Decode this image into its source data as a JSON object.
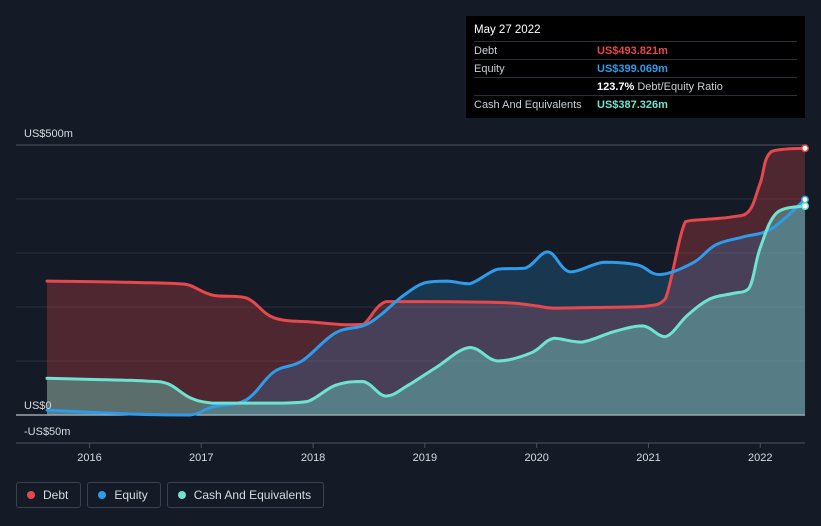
{
  "tooltip": {
    "date": "May 27 2022",
    "debt_label": "Debt",
    "debt_value": "US$493.821m",
    "equity_label": "Equity",
    "equity_value": "US$399.069m",
    "ratio_value": "123.7%",
    "ratio_label": "Debt/Equity Ratio",
    "cash_label": "Cash And Equivalents",
    "cash_value": "US$387.326m"
  },
  "colors": {
    "background": "#151b26",
    "debt": "#e5484d",
    "equity": "#2f9bea",
    "cash": "#6fe3cf",
    "grid": "#3a4150",
    "text": "#d6dae1"
  },
  "legend": [
    {
      "label": "Debt",
      "color": "#e5484d"
    },
    {
      "label": "Equity",
      "color": "#2f9bea"
    },
    {
      "label": "Cash And Equivalents",
      "color": "#6fe3cf"
    }
  ],
  "chart_data": {
    "type": "area",
    "xlabel": "",
    "ylabel": "",
    "y_tick_labels": [
      "US$500m",
      "US$0",
      "-US$50m"
    ],
    "y_ticks": [
      500,
      0,
      -50
    ],
    "ylim": [
      -50,
      500
    ],
    "xlim": [
      2015.6,
      2022.4
    ],
    "x_tick_labels": [
      "2016",
      "2017",
      "2018",
      "2019",
      "2020",
      "2021",
      "2022"
    ],
    "x_ticks": [
      2016,
      2017,
      2018,
      2019,
      2020,
      2021,
      2022
    ],
    "grid": true,
    "legend_position": "bottom-left",
    "series": [
      {
        "name": "Debt",
        "x": [
          2015.62,
          2016.0,
          2016.5,
          2016.8,
          2016.9,
          2017.1,
          2017.4,
          2017.65,
          2018.0,
          2018.3,
          2018.45,
          2018.65,
          2019.0,
          2019.5,
          2019.8,
          2020.0,
          2020.15,
          2020.5,
          2020.8,
          2021.0,
          2021.15,
          2021.33,
          2021.5,
          2021.75,
          2021.9,
          2022.0,
          2022.1,
          2022.4
        ],
        "values": [
          248,
          247,
          245,
          243,
          240,
          222,
          217,
          180,
          172,
          167,
          168,
          210,
          210,
          209,
          207,
          202,
          198,
          199,
          200,
          202,
          215,
          358,
          362,
          367,
          378,
          430,
          488,
          494
        ]
      },
      {
        "name": "Equity",
        "x": [
          2015.62,
          2016.0,
          2016.5,
          2016.9,
          2017.1,
          2017.4,
          2017.65,
          2017.9,
          2018.2,
          2018.5,
          2018.8,
          2019.0,
          2019.2,
          2019.4,
          2019.65,
          2019.9,
          2020.1,
          2020.3,
          2020.6,
          2020.9,
          2021.1,
          2021.4,
          2021.6,
          2021.85,
          2022.1,
          2022.4
        ],
        "values": [
          9,
          5,
          1,
          0,
          15,
          28,
          80,
          100,
          152,
          170,
          220,
          245,
          248,
          243,
          270,
          272,
          302,
          265,
          283,
          278,
          260,
          282,
          315,
          330,
          345,
          399
        ]
      },
      {
        "name": "Cash And Equivalents",
        "x": [
          2015.62,
          2016.0,
          2016.5,
          2016.7,
          2016.9,
          2017.1,
          2017.4,
          2017.7,
          2017.95,
          2018.2,
          2018.45,
          2018.65,
          2018.85,
          2019.1,
          2019.4,
          2019.65,
          2019.95,
          2020.15,
          2020.4,
          2020.7,
          2020.95,
          2021.15,
          2021.35,
          2021.55,
          2021.75,
          2021.9,
          2022.0,
          2022.15,
          2022.4
        ],
        "values": [
          68,
          66,
          63,
          58,
          32,
          22,
          22,
          22,
          25,
          55,
          62,
          35,
          55,
          88,
          125,
          100,
          115,
          142,
          135,
          155,
          165,
          145,
          185,
          215,
          225,
          235,
          310,
          375,
          387
        ]
      }
    ]
  }
}
